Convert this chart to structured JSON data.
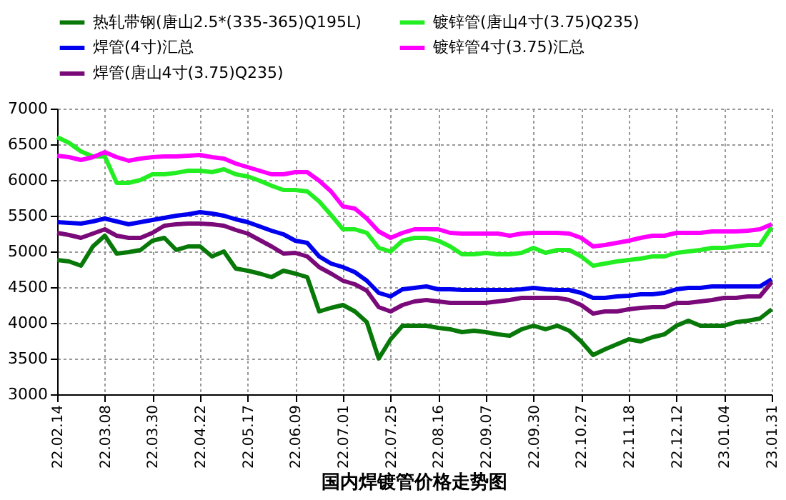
{
  "chart_data": {
    "type": "line",
    "title": "国内焊镀管价格走势图",
    "categories": [
      "22.02.14",
      null,
      null,
      null,
      "22.03.08",
      null,
      null,
      null,
      "22.03.30",
      null,
      null,
      null,
      "22.04.22",
      null,
      null,
      null,
      "22.05.17",
      null,
      null,
      null,
      "22.06.09",
      null,
      null,
      null,
      "22.07.01",
      null,
      null,
      null,
      "22.07.25",
      null,
      null,
      null,
      "22.08.16",
      null,
      null,
      null,
      "22.09.07",
      null,
      null,
      null,
      "22.09.30",
      null,
      null,
      null,
      "22.10.27",
      null,
      null,
      null,
      "22.11.18",
      null,
      null,
      null,
      "22.12.12",
      null,
      null,
      null,
      "23.01.04",
      null,
      null,
      null,
      "23.01.31"
    ],
    "series": [
      {
        "name": "热轧带钢(唐山2.5*(335-365)Q195L)",
        "color": "#087808",
        "values": [
          4880,
          4860,
          4800,
          5070,
          5220,
          4970,
          4990,
          5020,
          5150,
          5190,
          5020,
          5070,
          5070,
          4930,
          5000,
          4760,
          4730,
          4690,
          4640,
          4730,
          4690,
          4640,
          4160,
          4210,
          4250,
          4160,
          4010,
          3500,
          3770,
          3960,
          3960,
          3960,
          3930,
          3910,
          3870,
          3890,
          3870,
          3840,
          3820,
          3910,
          3960,
          3910,
          3960,
          3890,
          3740,
          3550,
          3630,
          3700,
          3770,
          3740,
          3800,
          3840,
          3960,
          4030,
          3960,
          3960,
          3960,
          4010,
          4030,
          4060,
          4190
        ]
      },
      {
        "name": "镀锌管(唐山4寸(3.75)Q235)",
        "color": "#22ee22",
        "values": [
          6600,
          6520,
          6400,
          6330,
          6330,
          5960,
          5960,
          6000,
          6080,
          6080,
          6100,
          6130,
          6130,
          6110,
          6150,
          6080,
          6050,
          5990,
          5920,
          5860,
          5860,
          5840,
          5700,
          5510,
          5310,
          5310,
          5260,
          5050,
          5000,
          5150,
          5190,
          5190,
          5150,
          5070,
          4960,
          4960,
          4980,
          4960,
          4960,
          4980,
          5050,
          4980,
          5020,
          5020,
          4930,
          4800,
          4830,
          4860,
          4880,
          4900,
          4930,
          4930,
          4980,
          5000,
          5020,
          5050,
          5050,
          5070,
          5090,
          5090,
          5340
        ]
      },
      {
        "name": "焊管(4寸)汇总",
        "color": "#0000ee",
        "values": [
          5410,
          5400,
          5390,
          5420,
          5460,
          5420,
          5380,
          5410,
          5440,
          5470,
          5500,
          5520,
          5550,
          5530,
          5500,
          5450,
          5410,
          5350,
          5290,
          5240,
          5150,
          5120,
          4930,
          4830,
          4780,
          4710,
          4590,
          4420,
          4370,
          4470,
          4490,
          4510,
          4470,
          4470,
          4460,
          4460,
          4460,
          4460,
          4460,
          4470,
          4490,
          4470,
          4460,
          4460,
          4420,
          4350,
          4350,
          4370,
          4380,
          4400,
          4400,
          4420,
          4470,
          4490,
          4490,
          4510,
          4510,
          4510,
          4510,
          4510,
          4610
        ]
      },
      {
        "name": "镀锌管4寸(3.75)汇总",
        "color": "#ff00ff",
        "values": [
          6340,
          6320,
          6280,
          6320,
          6390,
          6320,
          6270,
          6300,
          6320,
          6330,
          6330,
          6340,
          6350,
          6320,
          6300,
          6230,
          6180,
          6130,
          6080,
          6080,
          6110,
          6110,
          5990,
          5840,
          5630,
          5600,
          5460,
          5280,
          5190,
          5260,
          5310,
          5310,
          5310,
          5260,
          5250,
          5250,
          5250,
          5250,
          5220,
          5250,
          5260,
          5260,
          5260,
          5250,
          5190,
          5070,
          5090,
          5120,
          5150,
          5190,
          5220,
          5220,
          5260,
          5260,
          5260,
          5280,
          5280,
          5280,
          5290,
          5310,
          5380
        ]
      },
      {
        "name": "焊管(唐山4寸(3.75)Q235)",
        "color": "#7a0a7a",
        "values": [
          5260,
          5230,
          5190,
          5250,
          5310,
          5220,
          5190,
          5190,
          5260,
          5360,
          5380,
          5390,
          5390,
          5380,
          5360,
          5300,
          5250,
          5160,
          5070,
          4970,
          4980,
          4930,
          4780,
          4690,
          4590,
          4540,
          4450,
          4220,
          4160,
          4250,
          4300,
          4320,
          4300,
          4280,
          4280,
          4280,
          4280,
          4300,
          4320,
          4350,
          4350,
          4350,
          4350,
          4320,
          4250,
          4130,
          4160,
          4160,
          4190,
          4210,
          4220,
          4220,
          4280,
          4280,
          4300,
          4320,
          4350,
          4350,
          4370,
          4370,
          4570
        ]
      }
    ],
    "ylim": [
      3000,
      7000
    ],
    "yticks": [
      3000,
      3500,
      4000,
      4500,
      5000,
      5500,
      6000,
      6500,
      7000
    ],
    "grid": true,
    "legend": "top",
    "line_style": "solid"
  }
}
